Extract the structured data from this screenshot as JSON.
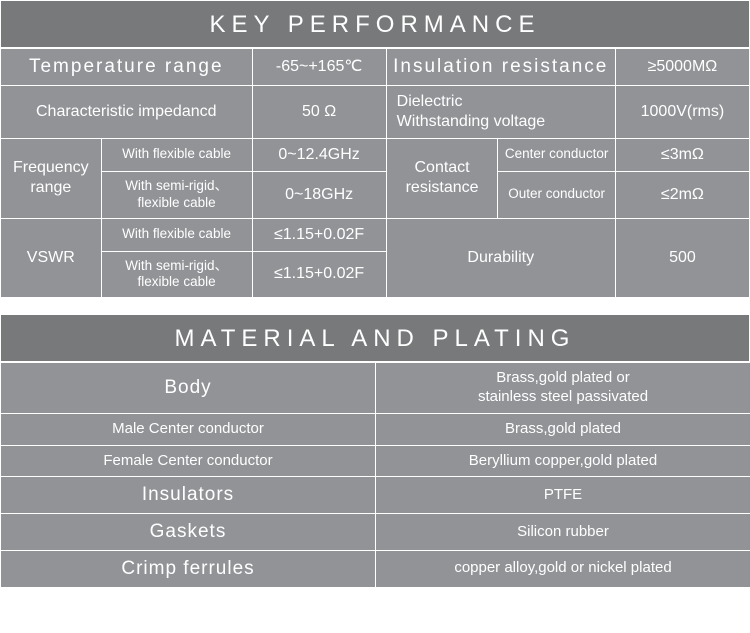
{
  "section1": {
    "title": "KEY PERFORMANCE",
    "rows": {
      "tempRangeLabel": "Temperature  range",
      "tempRangeVal": "-65~+165℃",
      "insResLabel": "Insulation resistance",
      "insResVal": "≥5000MΩ",
      "charImpLabel": "Characteristic impedancd",
      "charImpVal": "50 Ω",
      "dielLabel": "Dielectric\nWithstanding voltage",
      "dielVal": "1000V(rms)",
      "freqLabel": "Frequency range",
      "flexCable": "With flexible cable",
      "semiRigid": "With semi-rigid、\nflexible cable",
      "freqFlexVal": "0~12.4GHz",
      "freqSemiVal": "0~18GHz",
      "contactResLabel": "Contact resistance",
      "centerCond": "Center conductor",
      "outerCond": "Outer conductor",
      "centerCondVal": "≤3mΩ",
      "outerCondVal": "≤2mΩ",
      "vswrLabel": "VSWR",
      "vswrFlexVal": "≤1.15+0.02F",
      "vswrSemiVal": "≤1.15+0.02F",
      "durabilityLabel": "Durability",
      "durabilityVal": "500"
    }
  },
  "section2": {
    "title": "MATERIAL  AND  PLATING",
    "rows": [
      {
        "label": "Body",
        "value": "Brass,gold plated or\nstainless steel passivated"
      },
      {
        "label": "Male Center conductor",
        "value": "Brass,gold plated"
      },
      {
        "label": "Female Center conductor",
        "value": "Beryllium copper,gold plated"
      },
      {
        "label": "Insulators",
        "value": "PTFE"
      },
      {
        "label": "Gaskets",
        "value": "Silicon rubber"
      },
      {
        "label": "Crimp ferrules",
        "value": "copper alloy,gold or nickel plated"
      }
    ]
  },
  "colors": {
    "headerBg": "#77797b",
    "cellBg": "#919396",
    "border": "#ffffff",
    "text": "#ffffff"
  }
}
